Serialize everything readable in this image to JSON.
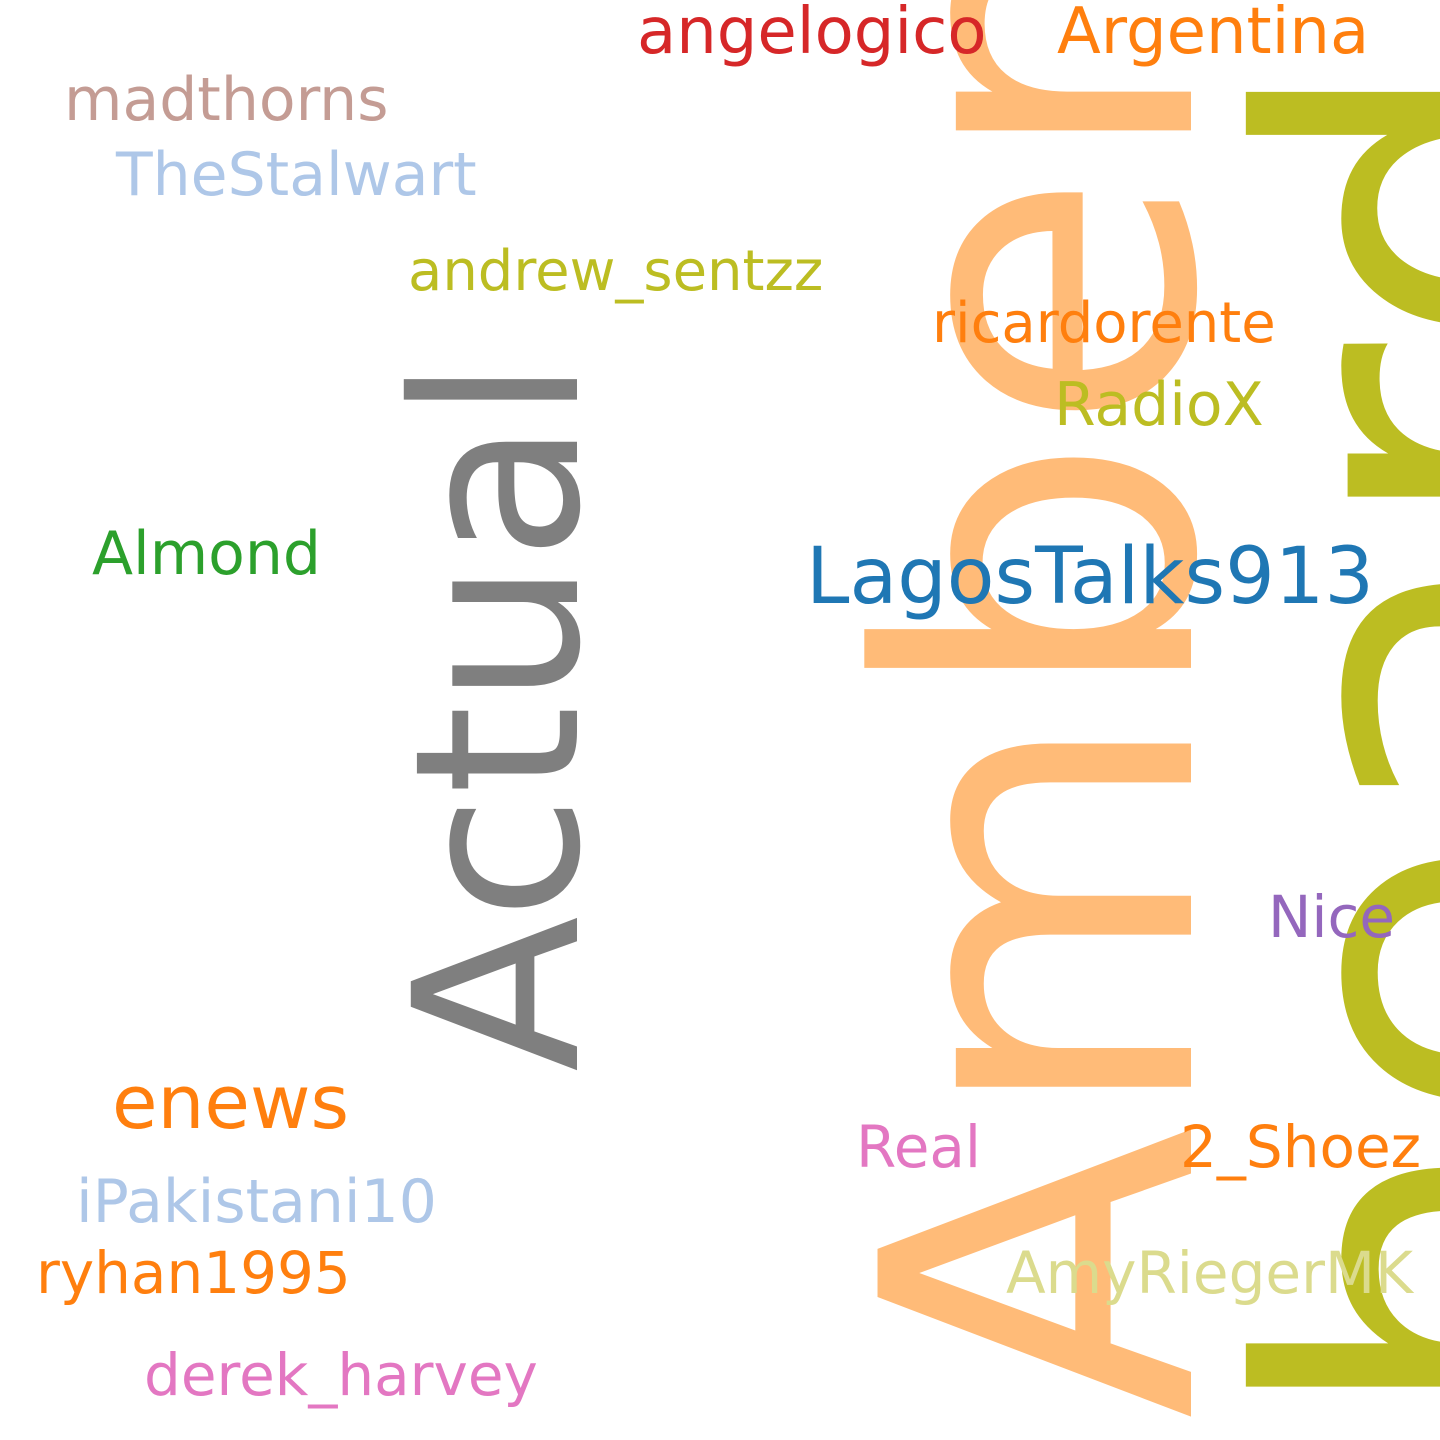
{
  "cloud": {
    "background": "#ffffff",
    "words": {
      "heard": {
        "text": "heard",
        "color": "#bcbd22"
      },
      "amber": {
        "text": "Amber",
        "color": "#ffbb78"
      },
      "actual": {
        "text": "Actual",
        "color": "#7f7f7f"
      },
      "angelogico": {
        "text": "angelogico",
        "color": "#d62728"
      },
      "argentina": {
        "text": "Argentina",
        "color": "#ff7f0e"
      },
      "madthorns": {
        "text": "madthorns",
        "color": "#c49c94"
      },
      "thestalwart": {
        "text": "TheStalwart",
        "color": "#aec7e8"
      },
      "andrew": {
        "text": "andrew_sentzz",
        "color": "#bcbd22"
      },
      "ricardo": {
        "text": "ricardorente",
        "color": "#ff7f0e"
      },
      "radiox": {
        "text": "RadioX",
        "color": "#bcbd22"
      },
      "almond": {
        "text": "Almond",
        "color": "#2ca02c"
      },
      "lagos": {
        "text": "LagosTalks913",
        "color": "#1f77b4"
      },
      "nice": {
        "text": "Nice",
        "color": "#9467bd"
      },
      "enews": {
        "text": "enews",
        "color": "#ff7f0e"
      },
      "real": {
        "text": "Real",
        "color": "#e377c2"
      },
      "shoez": {
        "text": "2_Shoez",
        "color": "#ff7f0e"
      },
      "ipakistani": {
        "text": "iPakistani10",
        "color": "#aec7e8"
      },
      "ryhan": {
        "text": "ryhan1995",
        "color": "#ff7f0e"
      },
      "amy": {
        "text": "AmyRiegerMK",
        "color": "#dbdb8d"
      },
      "derek": {
        "text": "derek_harvey",
        "color": "#e377c2"
      }
    }
  }
}
